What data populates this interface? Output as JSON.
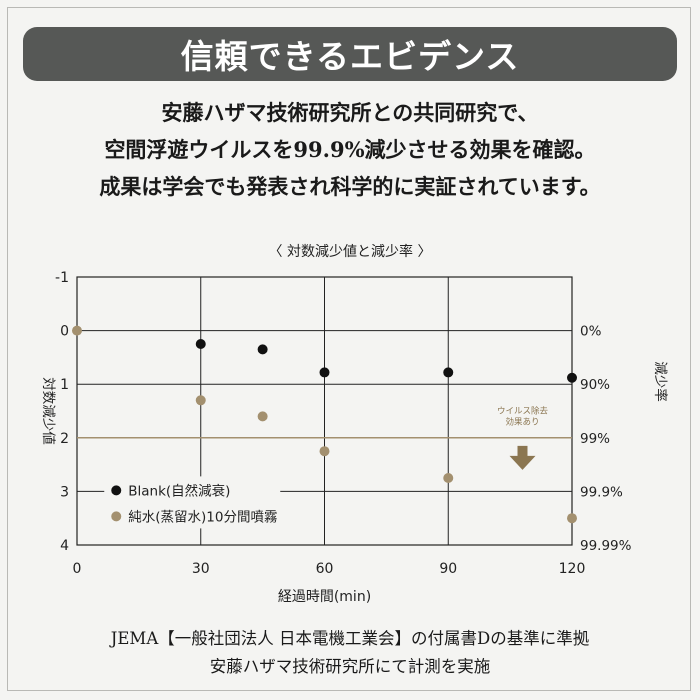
{
  "banner": {
    "title": "信頼できるエビデンス"
  },
  "intro": {
    "lines": [
      "安藤ハザマ技術研究所との共同研究で、",
      "空間浮遊ウイルスを99.9%減少させる効果を確認。",
      "成果は学会でも発表され科学的に実証されています。"
    ]
  },
  "chart_data": {
    "type": "scatter",
    "title": "〈 対数減少値と減少率 〉",
    "xlabel": "経過時間(min)",
    "ylabel": "対数減少値",
    "y2label": "減少率",
    "xlim": [
      0,
      120
    ],
    "ylim": [
      -1,
      4
    ],
    "y_inverted": true,
    "x_ticks": [
      0,
      30,
      60,
      90,
      120
    ],
    "y_ticks": [
      -1,
      0,
      1,
      2,
      3,
      4
    ],
    "y2_ticks": [
      {
        "value": 0,
        "label": "0%"
      },
      {
        "value": 1,
        "label": "90%"
      },
      {
        "value": 2,
        "label": "99%"
      },
      {
        "value": 3,
        "label": "99.9%"
      },
      {
        "value": 4,
        "label": "99.99%"
      }
    ],
    "reference_line": {
      "y": 2,
      "color": "#a3906f"
    },
    "annotation": {
      "lines": [
        "ウイルス除去",
        "効果あり"
      ],
      "x": 108,
      "color": "#8b7651"
    },
    "series": [
      {
        "name": "Blank(自然減衰)",
        "color": "#111111",
        "points": [
          [
            30,
            0.25
          ],
          [
            45,
            0.35
          ],
          [
            60,
            0.78
          ],
          [
            90,
            0.78
          ],
          [
            120,
            0.88
          ]
        ]
      },
      {
        "name": "純水(蒸留水)10分間噴霧",
        "color": "#a3906f",
        "points": [
          [
            0,
            0.0
          ],
          [
            30,
            1.3
          ],
          [
            45,
            1.6
          ],
          [
            60,
            2.25
          ],
          [
            90,
            2.75
          ],
          [
            120,
            3.5
          ]
        ]
      }
    ],
    "legend": "bottom-left",
    "grid": true
  },
  "footer": {
    "lines": [
      "JEMA【一般社団法人 日本電機工業会】の付属書Dの基準に準拠",
      "安藤ハザマ技術研究所にて計測を実施"
    ]
  }
}
